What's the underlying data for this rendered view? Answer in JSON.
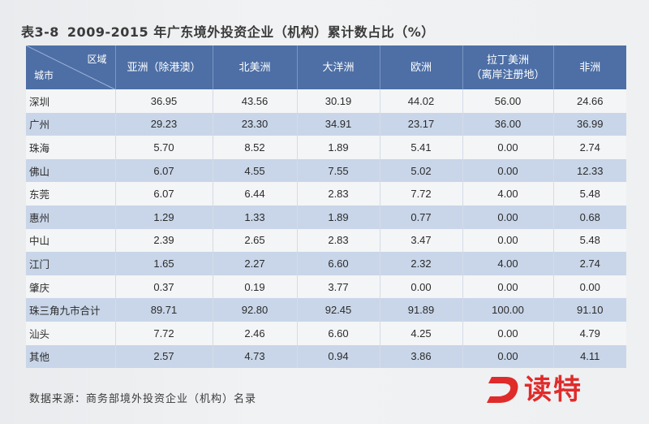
{
  "title": {
    "number": "表3-8",
    "text": "2009-2015 年广东境外投资企业（机构）累计数占比（%）"
  },
  "table": {
    "corner": {
      "region": "区域",
      "city": "城市"
    },
    "headers": [
      "亚洲（除港澳）",
      "北美洲",
      "大洋洲",
      "欧洲",
      "拉丁美洲\n（离岸注册地）",
      "非洲"
    ],
    "rows": [
      {
        "city": "深圳",
        "values": [
          "36.95",
          "43.56",
          "30.19",
          "44.02",
          "56.00",
          "24.66"
        ]
      },
      {
        "city": "广州",
        "values": [
          "29.23",
          "23.30",
          "34.91",
          "23.17",
          "36.00",
          "36.99"
        ]
      },
      {
        "city": "珠海",
        "values": [
          "5.70",
          "8.52",
          "1.89",
          "5.41",
          "0.00",
          "2.74"
        ]
      },
      {
        "city": "佛山",
        "values": [
          "6.07",
          "4.55",
          "7.55",
          "5.02",
          "0.00",
          "12.33"
        ]
      },
      {
        "city": "东莞",
        "values": [
          "6.07",
          "6.44",
          "2.83",
          "7.72",
          "4.00",
          "5.48"
        ]
      },
      {
        "city": "惠州",
        "values": [
          "1.29",
          "1.33",
          "1.89",
          "0.77",
          "0.00",
          "0.68"
        ]
      },
      {
        "city": "中山",
        "values": [
          "2.39",
          "2.65",
          "2.83",
          "3.47",
          "0.00",
          "5.48"
        ]
      },
      {
        "city": "江门",
        "values": [
          "1.65",
          "2.27",
          "6.60",
          "2.32",
          "4.00",
          "2.74"
        ]
      },
      {
        "city": "肇庆",
        "values": [
          "0.37",
          "0.19",
          "3.77",
          "0.00",
          "0.00",
          "0.00"
        ]
      },
      {
        "city": "珠三角九市合计",
        "values": [
          "89.71",
          "92.80",
          "92.45",
          "91.89",
          "100.00",
          "91.10"
        ]
      },
      {
        "city": "汕头",
        "values": [
          "7.72",
          "2.46",
          "6.60",
          "4.25",
          "0.00",
          "4.79"
        ]
      },
      {
        "city": "其他",
        "values": [
          "2.57",
          "4.73",
          "0.94",
          "3.86",
          "0.00",
          "4.11"
        ]
      }
    ]
  },
  "source": "数据来源：商务部境外投资企业（机构）名录",
  "logo": {
    "text": "读特",
    "mark": "D"
  },
  "colors": {
    "header_bg": "#4d6fa6",
    "stripe": "#c9d6e9",
    "logo_red": "#e02b2b"
  }
}
